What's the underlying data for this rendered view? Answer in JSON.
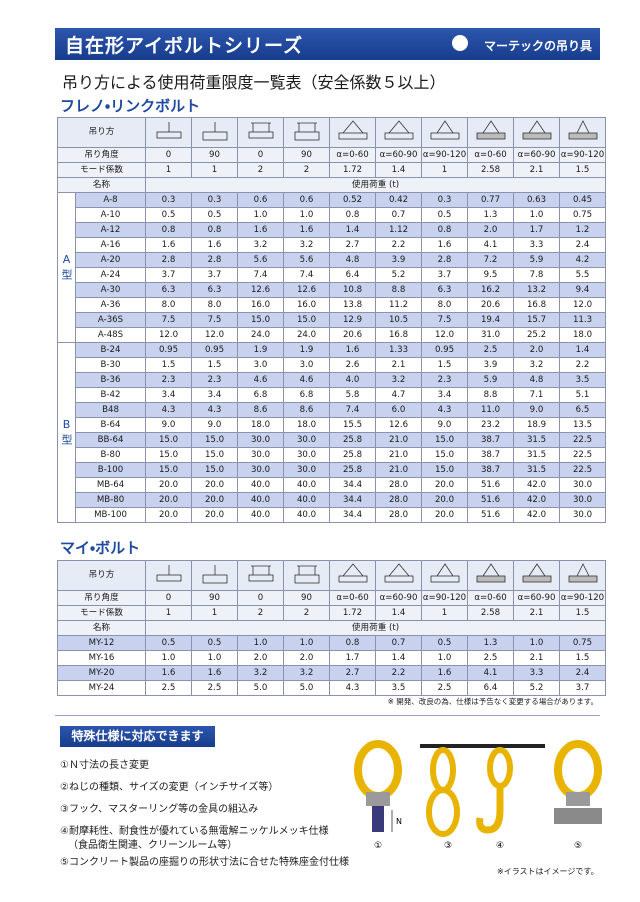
{
  "header": {
    "title": "自在形アイボルトシリーズ",
    "logo": "マーテックの吊り具"
  },
  "subtitle": "吊り方による使用荷重限度一覧表（安全係数５以上）",
  "sections": [
    {
      "title": "フレノ・リンクボルト",
      "table": {
        "header_label": "吊り方",
        "angle_label": "吊り角度",
        "angles": [
          "0",
          "90",
          "0",
          "90",
          "α=0-60",
          "α=60-90",
          "α=90-120",
          "α=0-60",
          "α=60-90",
          "α=90-120"
        ],
        "mode_label": "モード係数",
        "modes": [
          "1",
          "1",
          "2",
          "2",
          "1.72",
          "1.4",
          "1",
          "2.58",
          "2.1",
          "1.5"
        ],
        "name_label": "名称",
        "load_label": "使用荷重 (t)",
        "groups": [
          {
            "label": "A型",
            "rows": [
              {
                "name": "A-8",
                "values": [
                  "0.3",
                  "0.3",
                  "0.6",
                  "0.6",
                  "0.52",
                  "0.42",
                  "0.3",
                  "0.77",
                  "0.63",
                  "0.45"
                ]
              },
              {
                "name": "A-10",
                "values": [
                  "0.5",
                  "0.5",
                  "1.0",
                  "1.0",
                  "0.8",
                  "0.7",
                  "0.5",
                  "1.3",
                  "1.0",
                  "0.75"
                ]
              },
              {
                "name": "A-12",
                "values": [
                  "0.8",
                  "0.8",
                  "1.6",
                  "1.6",
                  "1.4",
                  "1.12",
                  "0.8",
                  "2.0",
                  "1.7",
                  "1.2"
                ]
              },
              {
                "name": "A-16",
                "values": [
                  "1.6",
                  "1.6",
                  "3.2",
                  "3.2",
                  "2.7",
                  "2.2",
                  "1.6",
                  "4.1",
                  "3.3",
                  "2.4"
                ]
              },
              {
                "name": "A-20",
                "values": [
                  "2.8",
                  "2.8",
                  "5.6",
                  "5.6",
                  "4.8",
                  "3.9",
                  "2.8",
                  "7.2",
                  "5.9",
                  "4.2"
                ]
              },
              {
                "name": "A-24",
                "values": [
                  "3.7",
                  "3.7",
                  "7.4",
                  "7.4",
                  "6.4",
                  "5.2",
                  "3.7",
                  "9.5",
                  "7.8",
                  "5.5"
                ]
              },
              {
                "name": "A-30",
                "values": [
                  "6.3",
                  "6.3",
                  "12.6",
                  "12.6",
                  "10.8",
                  "8.8",
                  "6.3",
                  "16.2",
                  "13.2",
                  "9.4"
                ]
              },
              {
                "name": "A-36",
                "values": [
                  "8.0",
                  "8.0",
                  "16.0",
                  "16.0",
                  "13.8",
                  "11.2",
                  "8.0",
                  "20.6",
                  "16.8",
                  "12.0"
                ]
              },
              {
                "name": "A-36S",
                "values": [
                  "7.5",
                  "7.5",
                  "15.0",
                  "15.0",
                  "12.9",
                  "10.5",
                  "7.5",
                  "19.4",
                  "15.7",
                  "11.3"
                ]
              },
              {
                "name": "A-48S",
                "values": [
                  "12.0",
                  "12.0",
                  "24.0",
                  "24.0",
                  "20.6",
                  "16.8",
                  "12.0",
                  "31.0",
                  "25.2",
                  "18.0"
                ]
              }
            ]
          },
          {
            "label": "B型",
            "rows": [
              {
                "name": "B-24",
                "values": [
                  "0.95",
                  "0.95",
                  "1.9",
                  "1.9",
                  "1.6",
                  "1.33",
                  "0.95",
                  "2.5",
                  "2.0",
                  "1.4"
                ]
              },
              {
                "name": "B-30",
                "values": [
                  "1.5",
                  "1.5",
                  "3.0",
                  "3.0",
                  "2.6",
                  "2.1",
                  "1.5",
                  "3.9",
                  "3.2",
                  "2.2"
                ]
              },
              {
                "name": "B-36",
                "values": [
                  "2.3",
                  "2.3",
                  "4.6",
                  "4.6",
                  "4.0",
                  "3.2",
                  "2.3",
                  "5.9",
                  "4.8",
                  "3.5"
                ]
              },
              {
                "name": "B-42",
                "values": [
                  "3.4",
                  "3.4",
                  "6.8",
                  "6.8",
                  "5.8",
                  "4.7",
                  "3.4",
                  "8.8",
                  "7.1",
                  "5.1"
                ]
              },
              {
                "name": "B48",
                "values": [
                  "4.3",
                  "4.3",
                  "8.6",
                  "8.6",
                  "7.4",
                  "6.0",
                  "4.3",
                  "11.0",
                  "9.0",
                  "6.5"
                ]
              },
              {
                "name": "B-64",
                "values": [
                  "9.0",
                  "9.0",
                  "18.0",
                  "18.0",
                  "15.5",
                  "12.6",
                  "9.0",
                  "23.2",
                  "18.9",
                  "13.5"
                ]
              },
              {
                "name": "BB-64",
                "values": [
                  "15.0",
                  "15.0",
                  "30.0",
                  "30.0",
                  "25.8",
                  "21.0",
                  "15.0",
                  "38.7",
                  "31.5",
                  "22.5"
                ]
              },
              {
                "name": "B-80",
                "values": [
                  "15.0",
                  "15.0",
                  "30.0",
                  "30.0",
                  "25.8",
                  "21.0",
                  "15.0",
                  "38.7",
                  "31.5",
                  "22.5"
                ]
              },
              {
                "name": "B-100",
                "values": [
                  "15.0",
                  "15.0",
                  "30.0",
                  "30.0",
                  "25.8",
                  "21.0",
                  "15.0",
                  "38.7",
                  "31.5",
                  "22.5"
                ]
              },
              {
                "name": "MB-64",
                "values": [
                  "20.0",
                  "20.0",
                  "40.0",
                  "40.0",
                  "34.4",
                  "28.0",
                  "20.0",
                  "51.6",
                  "42.0",
                  "30.0"
                ]
              },
              {
                "name": "MB-80",
                "values": [
                  "20.0",
                  "20.0",
                  "40.0",
                  "40.0",
                  "34.4",
                  "28.0",
                  "20.0",
                  "51.6",
                  "42.0",
                  "30.0"
                ]
              },
              {
                "name": "MB-100",
                "values": [
                  "20.0",
                  "20.0",
                  "40.0",
                  "40.0",
                  "34.4",
                  "28.0",
                  "20.0",
                  "51.6",
                  "42.0",
                  "30.0"
                ]
              }
            ]
          }
        ]
      }
    },
    {
      "title": "マイ・ボルト",
      "table": {
        "header_label": "吊り方",
        "angle_label": "吊り角度",
        "angles": [
          "0",
          "90",
          "0",
          "90",
          "α=0-60",
          "α=60-90",
          "α=90-120",
          "α=0-60",
          "α=60-90",
          "α=90-120"
        ],
        "mode_label": "モード係数",
        "modes": [
          "1",
          "1",
          "2",
          "2",
          "1.72",
          "1.4",
          "1",
          "2.58",
          "2.1",
          "1.5"
        ],
        "name_label": "名称",
        "load_label": "使用荷重 (t)",
        "rows": [
          {
            "name": "MY-12",
            "values": [
              "0.5",
              "0.5",
              "1.0",
              "1.0",
              "0.8",
              "0.7",
              "0.5",
              "1.3",
              "1.0",
              "0.75"
            ]
          },
          {
            "name": "MY-16",
            "values": [
              "1.0",
              "1.0",
              "2.0",
              "2.0",
              "1.7",
              "1.4",
              "1.0",
              "2.5",
              "2.1",
              "1.5"
            ]
          },
          {
            "name": "MY-20",
            "values": [
              "1.6",
              "1.6",
              "3.2",
              "3.2",
              "2.7",
              "2.2",
              "1.6",
              "4.1",
              "3.3",
              "2.4"
            ]
          },
          {
            "name": "MY-24",
            "values": [
              "2.5",
              "2.5",
              "5.0",
              "5.0",
              "4.3",
              "3.5",
              "2.5",
              "6.4",
              "5.2",
              "3.7"
            ]
          }
        ]
      },
      "note": "※ 開発、改良の為、仕様は予告なく変更する場合があります。"
    }
  ],
  "special": {
    "title": "特殊仕様に対応できます",
    "items": [
      [
        "①Ｎ寸法の長さ変更"
      ],
      [
        "②ねじの種類、サイズの変更（インチサイズ等）"
      ],
      [
        "③フック、マスターリング等の金具の組込み"
      ],
      [
        "④耐摩耗性、耐食性が優れている無電解ニッケルメッキ仕様",
        "（食品衛生関連、クリーンルーム等）"
      ],
      [
        "⑤コンクリート製品の座掘りの形状寸法に合せた特殊座金付仕様"
      ]
    ],
    "illustration_labels": [
      "①",
      "③",
      "④",
      "⑤"
    ],
    "dimension": "N",
    "illustration_note": "※イラストはイメージです。"
  }
}
